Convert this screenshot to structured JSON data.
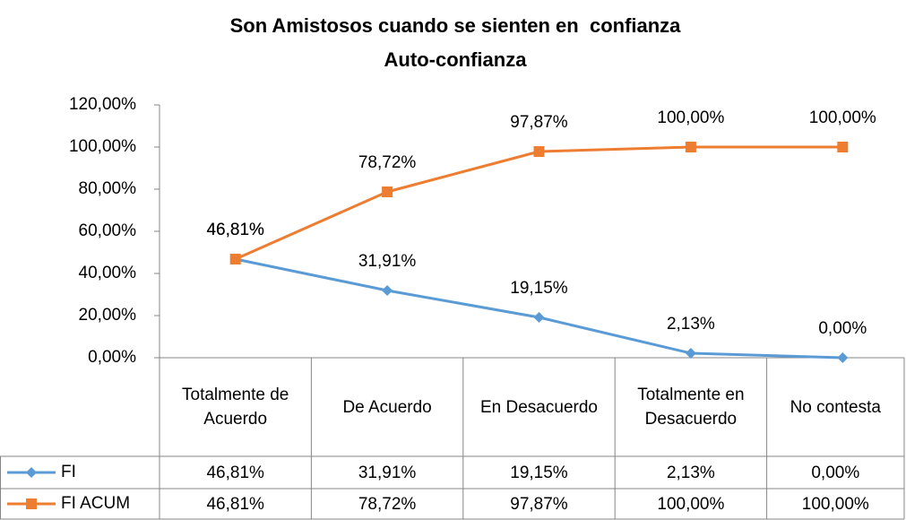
{
  "chart_data": {
    "type": "line",
    "title": "Son Amistosos cuando se sienten en  confianza",
    "subtitle": "Auto-confianza",
    "categories": [
      "Totalmente de Acuerdo",
      "De Acuerdo",
      "En Desacuerdo",
      "Totalmente en Desacuerdo",
      "No contesta"
    ],
    "series": [
      {
        "name": "FI",
        "color": "#5b9bd5",
        "marker": "diamond",
        "values": [
          46.81,
          31.91,
          19.15,
          2.13,
          0
        ],
        "value_labels": [
          "46,81%",
          "31,91%",
          "19,15%",
          "2,13%",
          "0,00%"
        ]
      },
      {
        "name": "FI ACUM",
        "color": "#ed7d31",
        "marker": "square",
        "values": [
          46.81,
          78.72,
          97.87,
          100,
          100
        ],
        "value_labels": [
          "46,81%",
          "78,72%",
          "97,87%",
          "100,00%",
          "100,00%"
        ]
      }
    ],
    "ylim": [
      0,
      120
    ],
    "yticks": [
      {
        "value": 0,
        "label": "0,00%"
      },
      {
        "value": 20,
        "label": "20,00%"
      },
      {
        "value": 40,
        "label": "40,00%"
      },
      {
        "value": 60,
        "label": "60,00%"
      },
      {
        "value": 80,
        "label": "80,00%"
      },
      {
        "value": 100,
        "label": "100,00%"
      },
      {
        "value": 120,
        "label": "120,00%"
      }
    ],
    "grid": false,
    "legend": "table"
  }
}
